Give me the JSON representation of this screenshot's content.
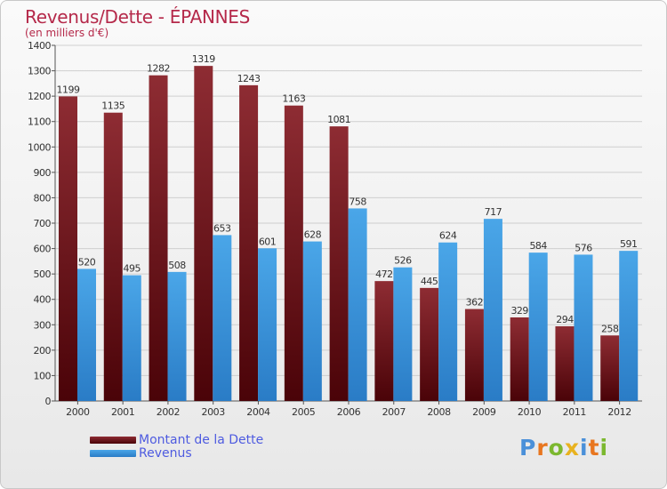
{
  "header": {
    "title": "Revenus/Dette - ÉPANNES",
    "subtitle": "(en milliers d'€)"
  },
  "logo": {
    "text": "Proxiti",
    "letter_colors": [
      "#4a90d9",
      "#e8761f",
      "#7cb82f",
      "#e8b21f",
      "#4a90d9",
      "#e8761f",
      "#7cb82f"
    ]
  },
  "colors": {
    "dette_top": "#8e2c33",
    "dette_bottom": "#4a0308",
    "revenus_top": "#4aa6e8",
    "revenus_bottom": "#2a7cc6",
    "grid": "#cfcfcf",
    "axis": "#555555",
    "label": "#333333",
    "title": "#b5294a",
    "legend_text": "#4e5be0"
  },
  "chart_data": {
    "type": "bar",
    "title": "Revenus/Dette - ÉPANNES",
    "subtitle": "(en milliers d'€)",
    "categories": [
      "2000",
      "2001",
      "2002",
      "2003",
      "2004",
      "2005",
      "2006",
      "2007",
      "2008",
      "2009",
      "2010",
      "2011",
      "2012"
    ],
    "series": [
      {
        "name": "Montant de la Dette",
        "values": [
          1199,
          1135,
          1282,
          1319,
          1243,
          1163,
          1081,
          472,
          445,
          362,
          329,
          294,
          258
        ]
      },
      {
        "name": "Revenus",
        "values": [
          520,
          495,
          508,
          653,
          601,
          628,
          758,
          526,
          624,
          717,
          584,
          576,
          591
        ]
      }
    ],
    "ylim": [
      0,
      1400
    ],
    "yticks": [
      0,
      100,
      200,
      300,
      400,
      500,
      600,
      700,
      800,
      900,
      1000,
      1100,
      1200,
      1300,
      1400
    ],
    "grid": true,
    "legend_position": "bottom-left",
    "xlabel": "",
    "ylabel": ""
  }
}
